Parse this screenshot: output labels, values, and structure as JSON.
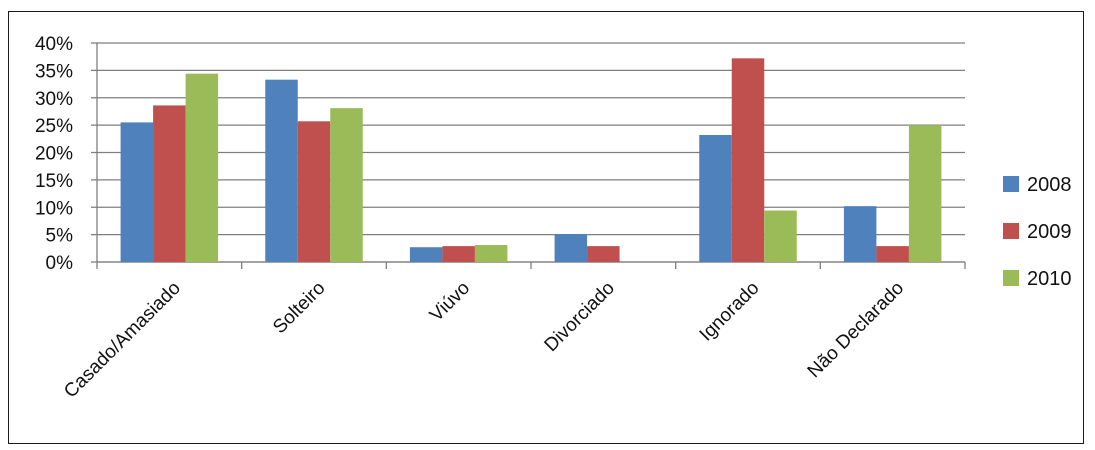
{
  "chart_data": {
    "type": "bar",
    "title": "",
    "xlabel": "",
    "ylabel": "",
    "categories": [
      "Casado/Amasiado",
      "Solteiro",
      "Viúvo",
      "Divorciado",
      "Ignorado",
      "Não Declarado"
    ],
    "series": [
      {
        "name": "2008",
        "color": "#4F81BD",
        "values": [
          25.5,
          33.3,
          2.7,
          5.1,
          23.2,
          10.2
        ]
      },
      {
        "name": "2009",
        "color": "#C0504D",
        "values": [
          28.6,
          25.7,
          2.9,
          2.9,
          37.2,
          2.9
        ]
      },
      {
        "name": "2010",
        "color": "#9BBB59",
        "values": [
          34.4,
          28.1,
          3.1,
          0,
          9.4,
          25.0
        ]
      }
    ],
    "ylim": [
      0,
      40
    ],
    "yticks": [
      0,
      5,
      10,
      15,
      20,
      25,
      30,
      35,
      40
    ],
    "ytick_labels": [
      "0%",
      "5%",
      "10%",
      "15%",
      "20%",
      "25%",
      "30%",
      "35%",
      "40%"
    ],
    "grid": true,
    "legend_position": "right"
  }
}
